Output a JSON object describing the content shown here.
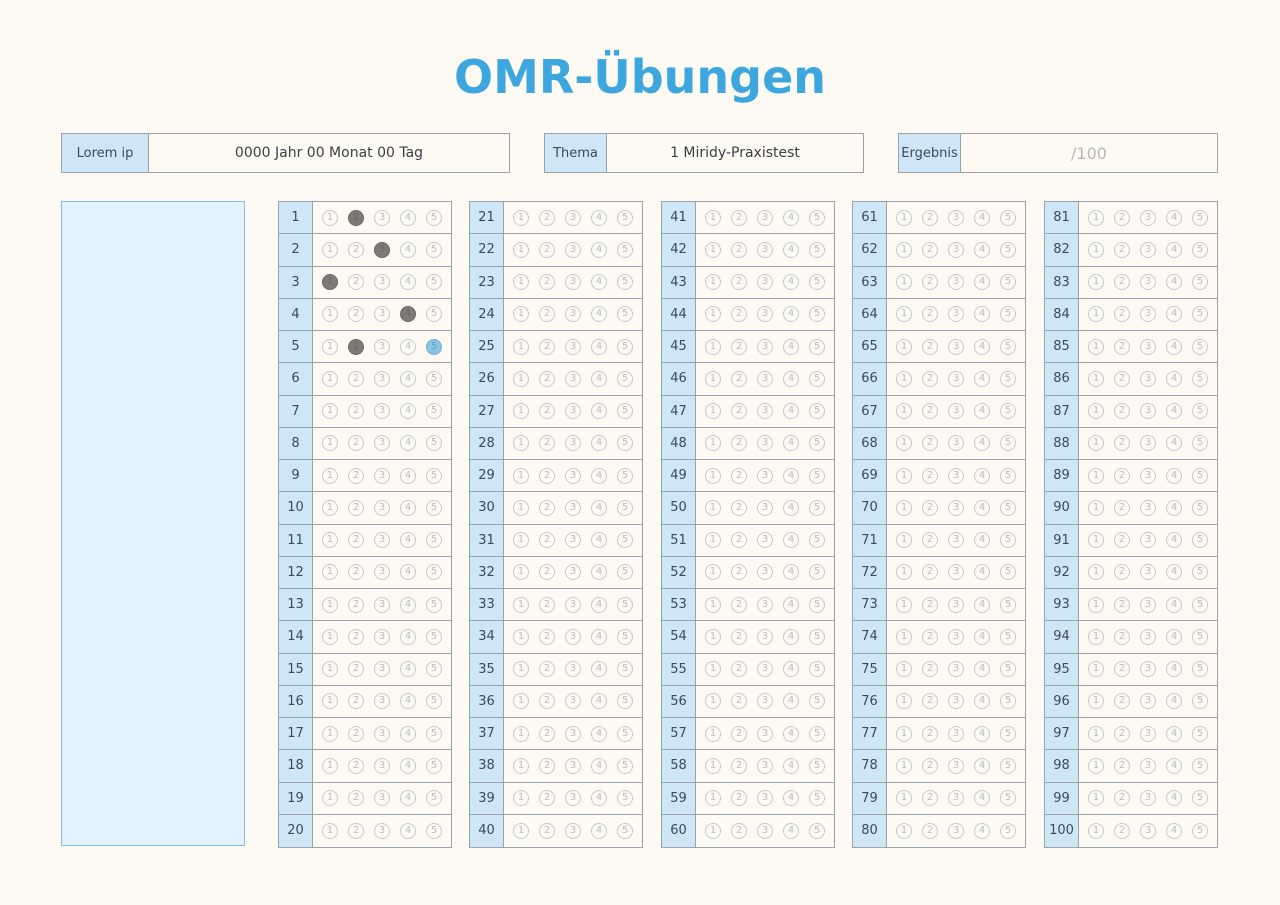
{
  "page": {
    "title": "OMR-Übungen"
  },
  "header": {
    "name_label": "Lorem ip",
    "date_value": "0000 Jahr 00 Monat 00 Tag",
    "topic_label": "Thema",
    "topic_value": "1 Miridy-Praxistest",
    "result_label": "Ergebnis",
    "result_value": "/100"
  },
  "sheet": {
    "options": [
      "1",
      "2",
      "3",
      "4",
      "5"
    ],
    "question_count": 100,
    "marked": {
      "1": 2,
      "2": 3,
      "3": 1,
      "4": 4,
      "5": 2
    },
    "selected": {
      "5": 5
    }
  },
  "colors": {
    "accent": "#3ea6de",
    "header_fill": "#cfe6f7",
    "panel_fill": "#e3f3fd"
  }
}
